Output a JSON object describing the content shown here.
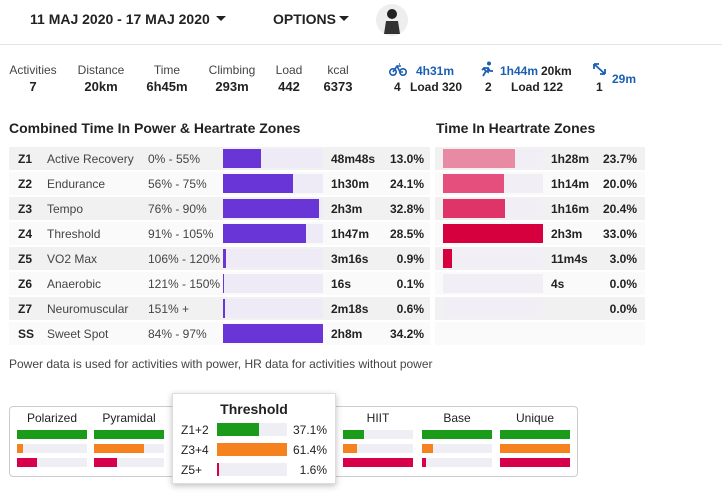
{
  "header": {
    "date_range": "11 MAJ 2020 - 17 MAJ 2020",
    "options": "OPTIONS"
  },
  "summary": {
    "stats": [
      {
        "label": "Activities",
        "value": "7"
      },
      {
        "label": "Distance",
        "value": "20km"
      },
      {
        "label": "Time",
        "value": "6h45m"
      },
      {
        "label": "Climbing",
        "value": "293m"
      },
      {
        "label": "Load",
        "value": "442"
      },
      {
        "label": "kcal",
        "value": "6373"
      }
    ],
    "sports": [
      {
        "time": "4h31m",
        "count": "4",
        "load": "Load 320"
      },
      {
        "time": "1h44m",
        "distance": "20km",
        "count": "2",
        "load": "Load 122"
      },
      {
        "time": "29m",
        "count": "1"
      }
    ]
  },
  "power_zones": {
    "title": "Combined Time In Power & Heartrate Zones",
    "color": "#6a35d6",
    "rows": [
      {
        "zone": "Z1",
        "name": "Active Recovery",
        "range": "0% - 55%",
        "time": "48m48s",
        "pct": {
          "value": 13.0,
          "label": "13.0%"
        }
      },
      {
        "zone": "Z2",
        "name": "Endurance",
        "range": "56% - 75%",
        "time": "1h30m",
        "pct": {
          "value": 24.1,
          "label": "24.1%"
        }
      },
      {
        "zone": "Z3",
        "name": "Tempo",
        "range": "76% - 90%",
        "time": "2h3m",
        "pct": {
          "value": 32.8,
          "label": "32.8%"
        }
      },
      {
        "zone": "Z4",
        "name": "Threshold",
        "range": "91% - 105%",
        "time": "1h47m",
        "pct": {
          "value": 28.5,
          "label": "28.5%"
        }
      },
      {
        "zone": "Z5",
        "name": "VO2 Max",
        "range": "106% - 120%",
        "time": "3m16s",
        "pct": {
          "value": 0.9,
          "label": "0.9%"
        }
      },
      {
        "zone": "Z6",
        "name": "Anaerobic",
        "range": "121% - 150%",
        "time": "16s",
        "pct": {
          "value": 0.1,
          "label": "0.1%"
        }
      },
      {
        "zone": "Z7",
        "name": "Neuromuscular",
        "range": "151% +",
        "time": "2m18s",
        "pct": {
          "value": 0.6,
          "label": "0.6%"
        }
      },
      {
        "zone": "SS",
        "name": "Sweet Spot",
        "range": "84% - 97%",
        "time": "2h8m",
        "pct": {
          "value": 34.2,
          "label": "34.2%"
        }
      }
    ]
  },
  "hr_zones": {
    "title": "Time In Heartrate Zones",
    "rows": [
      {
        "time": "1h28m",
        "pct": {
          "value": 23.7,
          "label": "23.7%"
        },
        "color": "#e98aa5"
      },
      {
        "time": "1h14m",
        "pct": {
          "value": 20.0,
          "label": "20.0%"
        },
        "color": "#e44f7e"
      },
      {
        "time": "1h16m",
        "pct": {
          "value": 20.4,
          "label": "20.4%"
        },
        "color": "#df3468"
      },
      {
        "time": "2h3m",
        "pct": {
          "value": 33.0,
          "label": "33.0%"
        },
        "color": "#d6003f"
      },
      {
        "time": "11m4s",
        "pct": {
          "value": 3.0,
          "label": "3.0%"
        },
        "color": "#d6003f"
      },
      {
        "time": "4s",
        "pct": {
          "value": 0.0,
          "label": "0.0%"
        },
        "color": "#d6003f"
      },
      {
        "time": null,
        "pct": {
          "value": 0.0,
          "label": "0.0%"
        },
        "color": "#d6003f"
      }
    ]
  },
  "note": "Power data is used for activities with power, HR data for activities without power",
  "classification": {
    "colors": [
      "#1a9c1a",
      "#f5821f",
      "#d6004b"
    ],
    "models": [
      {
        "name": "Polarized",
        "values": [
          100,
          8,
          28
        ]
      },
      {
        "name": "Pyramidal",
        "values": [
          100,
          72,
          33
        ]
      },
      {
        "name": "HIIT",
        "values": [
          30,
          20,
          100
        ]
      },
      {
        "name": "Base",
        "values": [
          100,
          15,
          5
        ]
      },
      {
        "name": "Unique",
        "values": [
          100,
          100,
          100
        ]
      }
    ],
    "popup": {
      "title": "Threshold",
      "rows": [
        {
          "label": "Z1+2",
          "pct": {
            "value": 37.1,
            "label": "37.1%"
          }
        },
        {
          "label": "Z3+4",
          "pct": {
            "value": 61.4,
            "label": "61.4%"
          }
        },
        {
          "label": "Z5+",
          "pct": {
            "value": 1.6,
            "label": "1.6%"
          }
        }
      ]
    }
  }
}
